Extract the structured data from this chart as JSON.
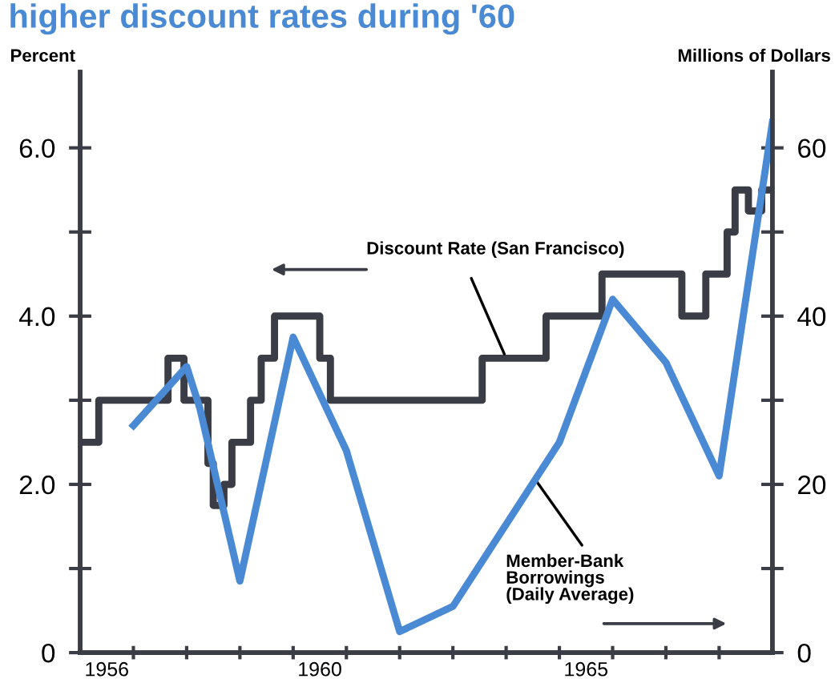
{
  "chart_data": {
    "type": "line",
    "title": "higher discount rates during '60",
    "ylabel": "Percent",
    "y2label": "Millions of Dollars",
    "series": [
      {
        "type": "step",
        "color": "#3a3d45",
        "x": [
          1956.0,
          1956.35,
          1957.65,
          1957.95,
          1958.4,
          1958.5,
          1958.7,
          1958.85,
          1959.2,
          1959.4,
          1959.65,
          1960.5,
          1960.7,
          1963.55,
          1964.75,
          1965.8,
          1967.3,
          1967.75,
          1968.15,
          1968.3,
          1968.55,
          1968.8,
          1969.0
        ],
        "values": [
          2.5,
          3.0,
          3.5,
          3.0,
          2.25,
          1.75,
          2.0,
          2.5,
          3.0,
          3.5,
          4.0,
          3.5,
          3.0,
          3.5,
          4.0,
          4.5,
          4.0,
          4.5,
          5.0,
          5.5,
          5.25,
          5.5,
          5.5
        ]
      },
      {
        "axis": "y2",
        "color": "#4a8ad4",
        "x": [
          1957.0,
          1958.0,
          1958.25,
          1959.0,
          1960.0,
          1961.0,
          1962.0,
          1963.0,
          1965.0,
          1966.0,
          1967.0,
          1968.0,
          1969.0
        ],
        "values": [
          27,
          34,
          29,
          8.5,
          37.5,
          24,
          2.5,
          5.5,
          25,
          42,
          34.5,
          21,
          63
        ]
      }
    ],
    "annotations": [
      {
        "text": "Discount Rate (San Francisco)",
        "x": 1964.0,
        "y": 3.5
      },
      {
        "text": "Member-Bank Borrowings (Daily Average)",
        "x": 1964.5,
        "y": 2.1
      }
    ],
    "xlim": [
      1956,
      1969
    ],
    "xticks": [
      {
        "value": 1956.5,
        "label": "1956"
      },
      {
        "value": 1960.5,
        "label": "1960"
      },
      {
        "value": 1965.5,
        "label": "1965"
      },
      {
        "value": 1957,
        "label": null
      },
      {
        "value": 1958,
        "label": null
      },
      {
        "value": 1959,
        "label": null
      },
      {
        "value": 1960,
        "label": null
      },
      {
        "value": 1961,
        "label": null
      },
      {
        "value": 1962,
        "label": null
      },
      {
        "value": 1963,
        "label": null
      },
      {
        "value": 1964,
        "label": null
      },
      {
        "value": 1965,
        "label": null
      },
      {
        "value": 1966,
        "label": null
      },
      {
        "value": 1967,
        "label": null
      },
      {
        "value": 1968,
        "label": null
      }
    ],
    "ylim": [
      0,
      6.9
    ],
    "yticks": [
      {
        "value": 0,
        "label": "0"
      },
      {
        "value": 1.0,
        "label": null
      },
      {
        "value": 2.0,
        "label": "2.0"
      },
      {
        "value": 3.0,
        "label": null
      },
      {
        "value": 4.0,
        "label": "4.0"
      },
      {
        "value": 5.0,
        "label": null
      },
      {
        "value": 6.0,
        "label": "6.0"
      }
    ],
    "y2lim": [
      0,
      69
    ],
    "y2ticks": [
      0,
      {
        "value": 10,
        "label": null
      },
      20,
      {
        "value": 30,
        "label": null
      },
      40,
      {
        "value": 50,
        "label": null
      },
      60
    ],
    "grid": false,
    "legend": false
  }
}
